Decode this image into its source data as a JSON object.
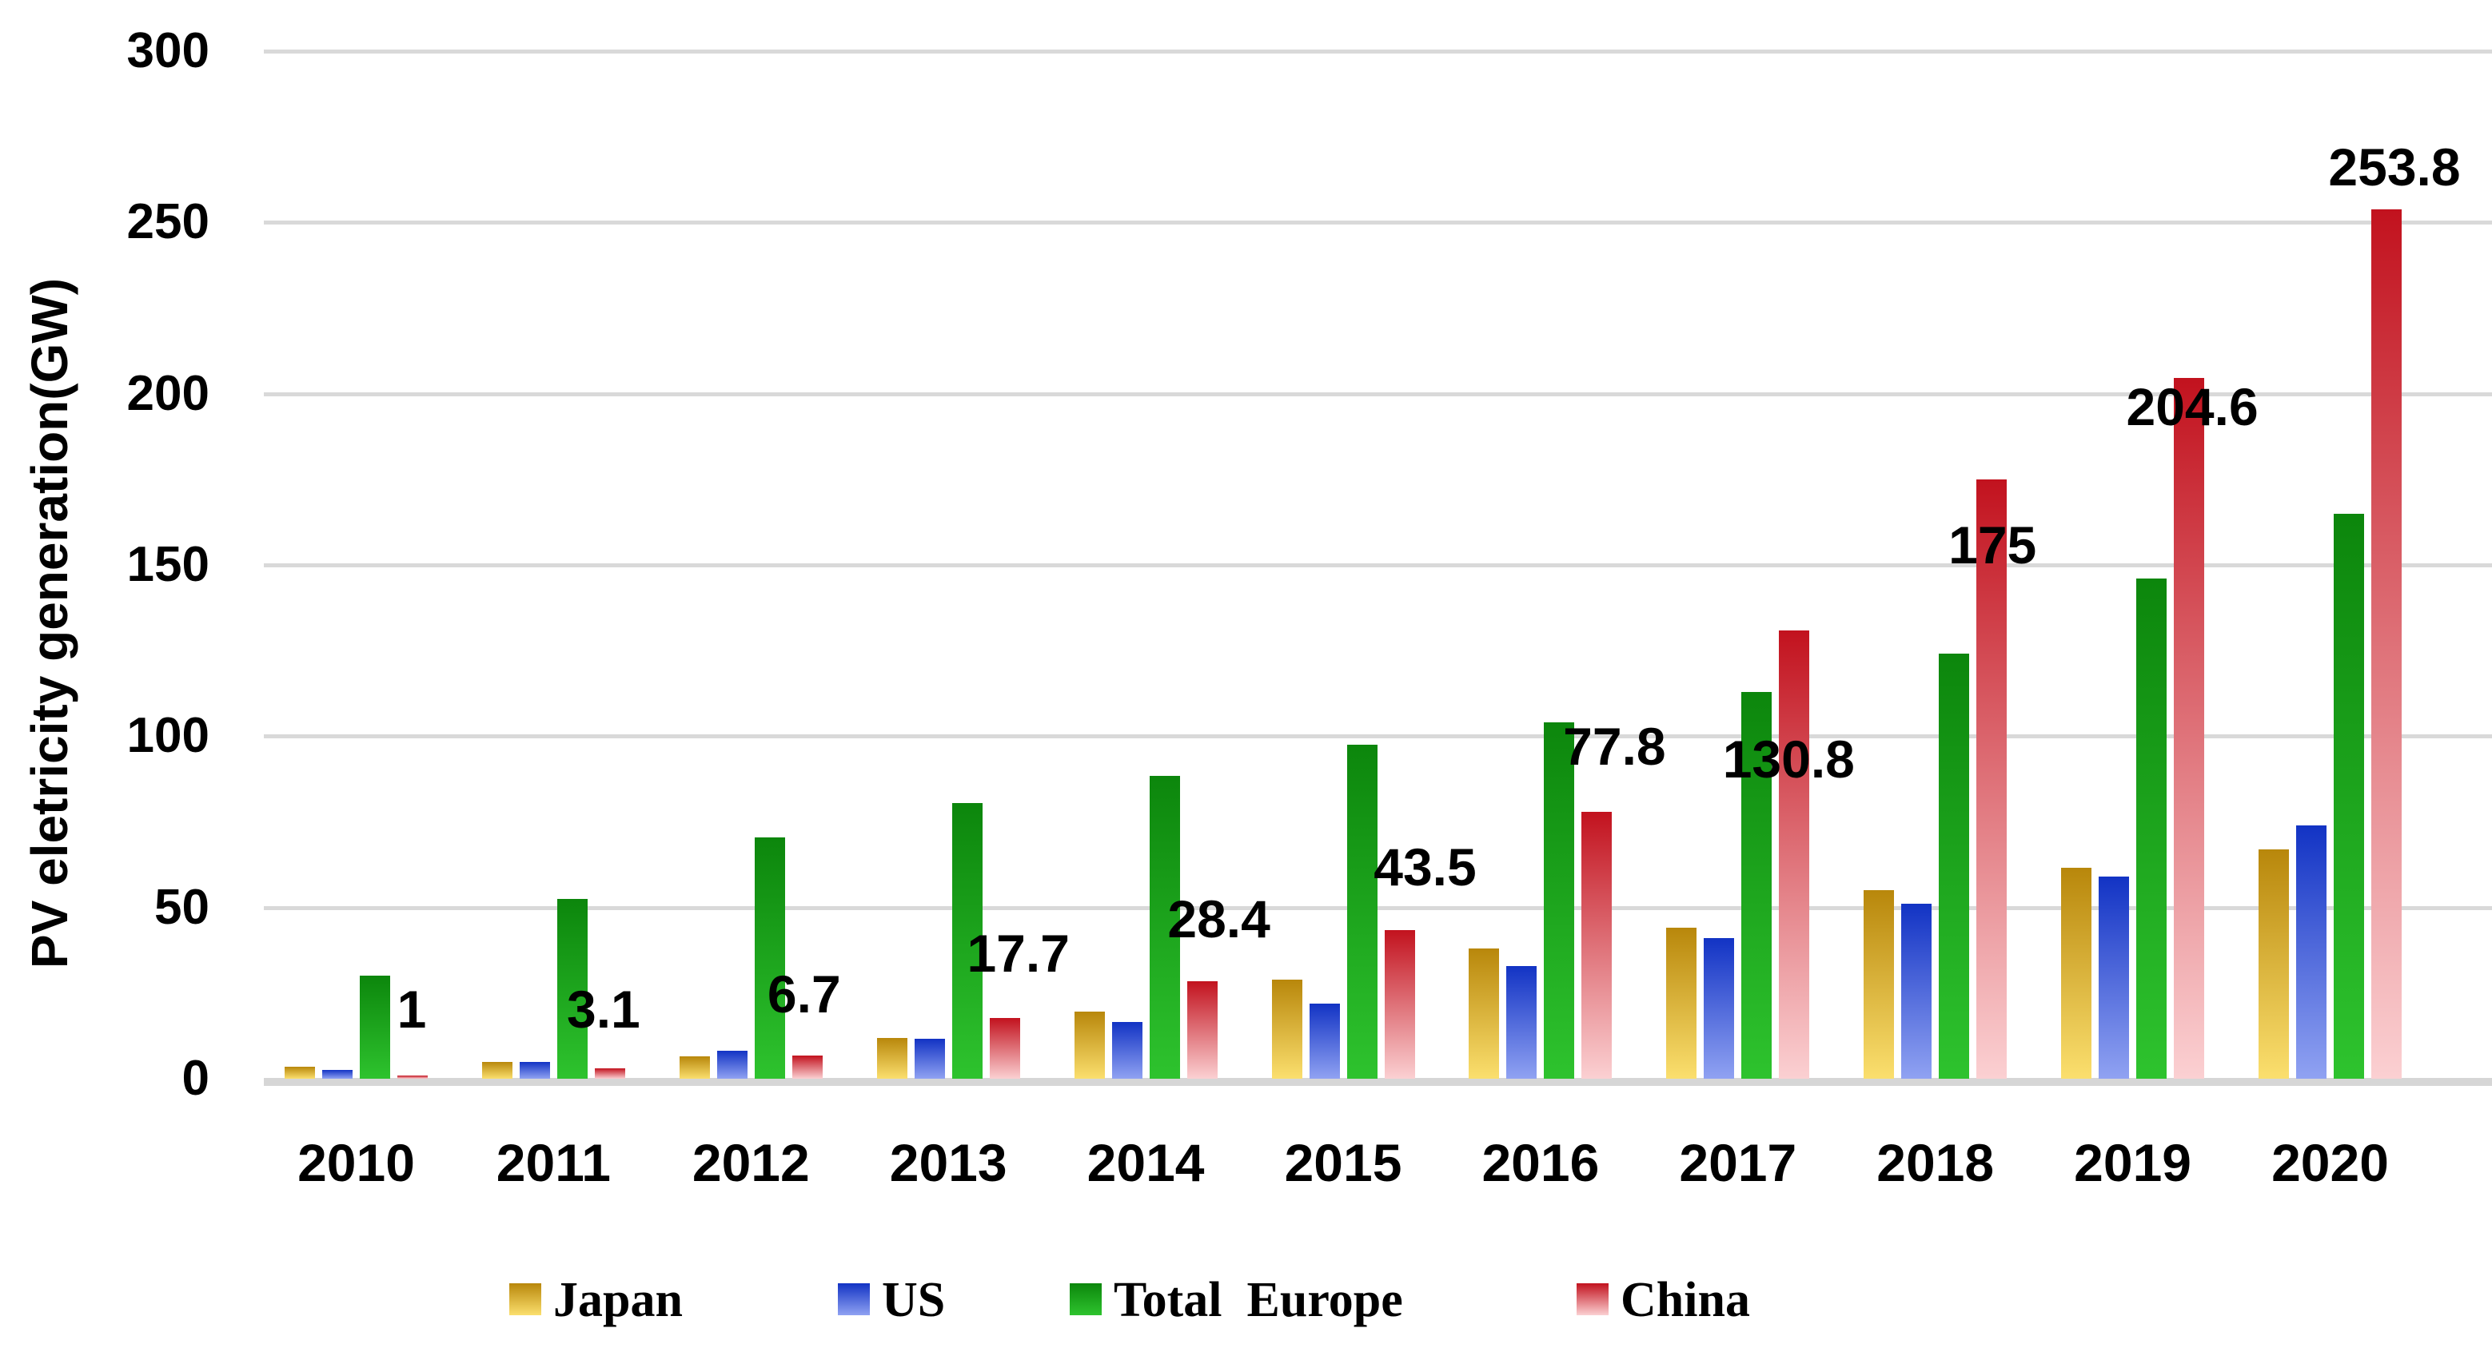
{
  "y_axis": {
    "title": "PV eletricity generation(GW)"
  },
  "legend": {
    "items": [
      {
        "label": "Japan"
      },
      {
        "label": "US"
      },
      {
        "label": "Total  Europe"
      },
      {
        "label": "China"
      }
    ]
  },
  "chart_data": {
    "type": "bar",
    "title": "",
    "xlabel": "",
    "ylabel": "PV eletricity generation(GW)",
    "ylim": [
      0,
      300
    ],
    "yticks": [
      0,
      50,
      100,
      150,
      200,
      250,
      300
    ],
    "grid": true,
    "legend_position": "bottom",
    "categories": [
      "2010",
      "2011",
      "2012",
      "2013",
      "2014",
      "2015",
      "2016",
      "2017",
      "2018",
      "2019",
      "2020"
    ],
    "series": [
      {
        "name": "Japan",
        "color_top": "#B8870B",
        "color_bottom": "#FBDF6E",
        "values": [
          3.6,
          4.9,
          6.6,
          12,
          19.5,
          29,
          38,
          44,
          55,
          61.5,
          67
        ]
      },
      {
        "name": "US",
        "color_top": "#1233C4",
        "color_bottom": "#90A2F2",
        "values": [
          2.5,
          4.9,
          8.2,
          11.7,
          16.5,
          22,
          33,
          41,
          51,
          59,
          74
        ]
      },
      {
        "name": "Total Europe",
        "color_top": "#0C860C",
        "color_bottom": "#2EC32E",
        "values": [
          30,
          52.5,
          70.5,
          80.5,
          88.5,
          97.5,
          104,
          113,
          124,
          146,
          165
        ]
      },
      {
        "name": "China",
        "color_top": "#C2121E",
        "color_bottom": "#FBD0D2",
        "values": [
          1,
          3.1,
          6.7,
          17.7,
          28.4,
          43.5,
          77.8,
          130.8,
          175,
          204.6,
          253.8
        ],
        "data_labels": [
          "1",
          "3.1",
          "6.7",
          "17.7",
          "28.4",
          "43.5",
          "77.8",
          "130.8",
          "175",
          "204.6",
          "253.8"
        ]
      }
    ]
  }
}
